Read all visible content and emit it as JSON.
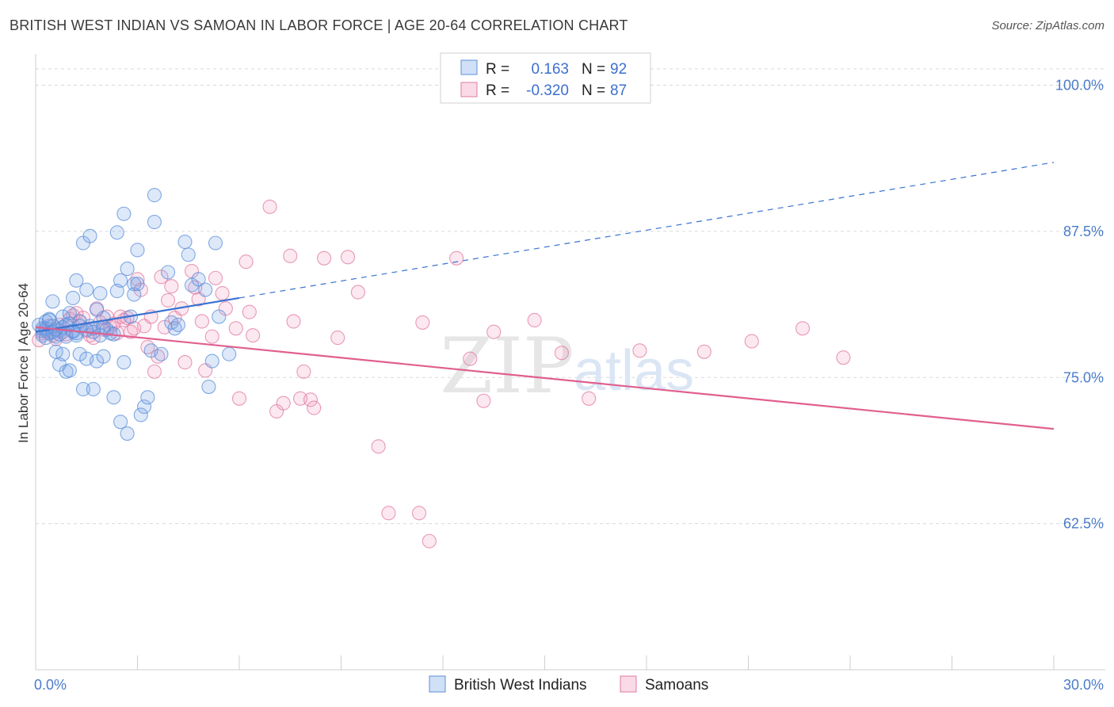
{
  "title": "BRITISH WEST INDIAN VS SAMOAN IN LABOR FORCE | AGE 20-64 CORRELATION CHART",
  "source": "Source: ZipAtlas.com",
  "colors": {
    "blue": "#5b8fd9",
    "blue_fill": "rgba(120,165,230,0.25)",
    "pink": "#e07aa0",
    "pink_fill": "rgba(240,150,185,0.22)",
    "blue_line": "#3a72d0",
    "pink_line": "#e0608f",
    "grid": "#d9d9d9"
  },
  "legend": {
    "r_label": "R =",
    "n_label": "N =",
    "rows": [
      {
        "r": "0.163",
        "n": "92",
        "series": "blue"
      },
      {
        "r": "-0.320",
        "n": "87",
        "series": "pink"
      }
    ]
  },
  "watermark": {
    "zip": "ZIP",
    "atlas": "atlas"
  },
  "chart_data": {
    "type": "scatter",
    "title": "BRITISH WEST INDIAN VS SAMOAN IN LABOR FORCE | AGE 20-64 CORRELATION CHART",
    "xlabel": "",
    "ylabel": "In Labor Force | Age 20-64",
    "xlim": [
      0,
      30
    ],
    "ylim": [
      50,
      102
    ],
    "x_tick_labels": [
      "0.0%",
      "30.0%"
    ],
    "y_ticks": [
      62.5,
      75.0,
      87.5,
      100.0
    ],
    "y_tick_labels": [
      "62.5%",
      "75.0%",
      "87.5%",
      "100.0%"
    ],
    "grid": "horizontal dashed",
    "legend_position": "top-center",
    "series": [
      {
        "name": "British West Indians",
        "color": "blue",
        "R": 0.163,
        "N": 92,
        "trend": {
          "x": [
            0.0,
            6.0
          ],
          "y": [
            78.9,
            81.8
          ],
          "dashed_extension": {
            "x": [
              6.0,
              30.0
            ],
            "y": [
              81.8,
              93.4
            ]
          }
        },
        "points": [
          [
            0.1,
            79.5
          ],
          [
            0.2,
            79.0
          ],
          [
            0.2,
            78.6
          ],
          [
            0.3,
            79.8
          ],
          [
            0.3,
            79.2
          ],
          [
            0.4,
            80.0
          ],
          [
            0.4,
            78.8
          ],
          [
            0.5,
            81.5
          ],
          [
            0.5,
            79.4
          ],
          [
            0.6,
            78.5
          ],
          [
            0.6,
            77.2
          ],
          [
            0.7,
            79.0
          ],
          [
            0.7,
            76.1
          ],
          [
            0.8,
            77.0
          ],
          [
            0.8,
            80.2
          ],
          [
            0.9,
            79.5
          ],
          [
            0.9,
            75.5
          ],
          [
            1.0,
            75.6
          ],
          [
            1.0,
            80.5
          ],
          [
            1.1,
            81.8
          ],
          [
            1.1,
            78.9
          ],
          [
            1.2,
            83.3
          ],
          [
            1.2,
            78.6
          ],
          [
            1.3,
            77.0
          ],
          [
            1.3,
            79.8
          ],
          [
            1.4,
            74.0
          ],
          [
            1.4,
            86.5
          ],
          [
            1.5,
            76.6
          ],
          [
            1.5,
            82.5
          ],
          [
            1.6,
            87.1
          ],
          [
            1.6,
            79.4
          ],
          [
            1.7,
            79.2
          ],
          [
            1.7,
            74.0
          ],
          [
            1.8,
            76.4
          ],
          [
            1.8,
            80.8
          ],
          [
            1.9,
            78.6
          ],
          [
            1.9,
            82.2
          ],
          [
            2.0,
            76.8
          ],
          [
            2.0,
            80.1
          ],
          [
            2.1,
            79.1
          ],
          [
            2.2,
            78.8
          ],
          [
            2.3,
            73.3
          ],
          [
            2.3,
            78.7
          ],
          [
            2.4,
            87.4
          ],
          [
            2.4,
            82.4
          ],
          [
            2.5,
            83.3
          ],
          [
            2.5,
            71.2
          ],
          [
            2.6,
            76.3
          ],
          [
            2.6,
            89.0
          ],
          [
            2.7,
            84.3
          ],
          [
            2.7,
            70.2
          ],
          [
            2.8,
            80.2
          ],
          [
            2.9,
            83.0
          ],
          [
            2.9,
            82.1
          ],
          [
            3.0,
            85.9
          ],
          [
            3.0,
            83.0
          ],
          [
            3.1,
            71.8
          ],
          [
            3.2,
            72.5
          ],
          [
            3.3,
            73.3
          ],
          [
            3.4,
            77.3
          ],
          [
            3.5,
            90.6
          ],
          [
            3.5,
            88.3
          ],
          [
            3.7,
            77.0
          ],
          [
            3.9,
            84.0
          ],
          [
            4.0,
            79.7
          ],
          [
            4.1,
            79.2
          ],
          [
            4.2,
            79.5
          ],
          [
            4.4,
            86.6
          ],
          [
            4.5,
            85.5
          ],
          [
            4.6,
            82.9
          ],
          [
            4.8,
            83.4
          ],
          [
            5.0,
            82.5
          ],
          [
            5.1,
            74.2
          ],
          [
            5.2,
            76.4
          ],
          [
            5.3,
            86.5
          ],
          [
            5.4,
            80.2
          ],
          [
            5.7,
            77.0
          ],
          [
            0.2,
            79.2
          ],
          [
            0.3,
            78.4
          ],
          [
            0.4,
            79.9
          ],
          [
            0.5,
            78.9
          ],
          [
            0.6,
            79.1
          ],
          [
            0.7,
            78.7
          ],
          [
            0.8,
            79.3
          ],
          [
            0.9,
            78.5
          ],
          [
            1.0,
            79.6
          ],
          [
            1.1,
            79.0
          ],
          [
            1.2,
            78.8
          ],
          [
            1.3,
            79.4
          ],
          [
            1.5,
            79.1
          ],
          [
            1.7,
            78.9
          ],
          [
            2.0,
            79.3
          ]
        ]
      },
      {
        "name": "Samoans",
        "color": "pink",
        "R": -0.32,
        "N": 87,
        "trend": {
          "x": [
            0.0,
            30.0
          ],
          "y": [
            79.3,
            70.6
          ]
        },
        "points": [
          [
            0.1,
            78.2
          ],
          [
            0.2,
            78.8
          ],
          [
            0.3,
            79.0
          ],
          [
            0.4,
            79.4
          ],
          [
            0.5,
            78.6
          ],
          [
            0.6,
            78.3
          ],
          [
            0.7,
            79.5
          ],
          [
            0.8,
            78.9
          ],
          [
            0.9,
            78.7
          ],
          [
            1.0,
            80.0
          ],
          [
            1.1,
            80.3
          ],
          [
            1.2,
            80.5
          ],
          [
            1.3,
            79.8
          ],
          [
            1.4,
            80.1
          ],
          [
            1.5,
            79.0
          ],
          [
            1.6,
            78.6
          ],
          [
            1.7,
            78.4
          ],
          [
            1.8,
            80.9
          ],
          [
            1.9,
            79.7
          ],
          [
            2.0,
            79.1
          ],
          [
            2.1,
            80.2
          ],
          [
            2.2,
            79.3
          ],
          [
            2.3,
            79.6
          ],
          [
            2.4,
            78.8
          ],
          [
            2.5,
            80.2
          ],
          [
            2.6,
            79.9
          ],
          [
            2.7,
            80.1
          ],
          [
            2.8,
            78.9
          ],
          [
            2.9,
            79.2
          ],
          [
            3.0,
            83.4
          ],
          [
            3.1,
            82.5
          ],
          [
            3.2,
            79.4
          ],
          [
            3.3,
            77.6
          ],
          [
            3.4,
            80.2
          ],
          [
            3.5,
            75.5
          ],
          [
            3.6,
            76.8
          ],
          [
            3.7,
            83.6
          ],
          [
            3.8,
            79.3
          ],
          [
            3.9,
            81.6
          ],
          [
            4.0,
            82.8
          ],
          [
            4.1,
            80.1
          ],
          [
            4.3,
            80.9
          ],
          [
            4.4,
            76.3
          ],
          [
            4.6,
            84.1
          ],
          [
            4.7,
            82.7
          ],
          [
            4.8,
            81.7
          ],
          [
            4.9,
            79.8
          ],
          [
            5.0,
            75.6
          ],
          [
            5.2,
            78.5
          ],
          [
            5.3,
            83.5
          ],
          [
            5.5,
            82.2
          ],
          [
            5.6,
            80.9
          ],
          [
            5.9,
            79.2
          ],
          [
            6.0,
            73.2
          ],
          [
            6.2,
            84.9
          ],
          [
            6.3,
            80.6
          ],
          [
            6.4,
            78.6
          ],
          [
            6.9,
            89.6
          ],
          [
            7.1,
            72.1
          ],
          [
            7.3,
            72.8
          ],
          [
            7.5,
            85.4
          ],
          [
            7.6,
            79.8
          ],
          [
            7.8,
            73.2
          ],
          [
            7.9,
            75.5
          ],
          [
            8.1,
            73.1
          ],
          [
            8.2,
            72.4
          ],
          [
            8.5,
            85.2
          ],
          [
            8.9,
            78.4
          ],
          [
            9.2,
            85.3
          ],
          [
            9.5,
            82.3
          ],
          [
            10.1,
            69.1
          ],
          [
            10.4,
            63.4
          ],
          [
            11.3,
            63.4
          ],
          [
            11.4,
            79.7
          ],
          [
            11.6,
            61.0
          ],
          [
            12.4,
            85.2
          ],
          [
            12.8,
            76.6
          ],
          [
            13.2,
            73.0
          ],
          [
            13.5,
            78.9
          ],
          [
            14.7,
            79.9
          ],
          [
            15.5,
            77.1
          ],
          [
            16.3,
            73.2
          ],
          [
            17.8,
            77.3
          ],
          [
            19.7,
            77.2
          ],
          [
            21.1,
            78.1
          ],
          [
            22.6,
            79.2
          ],
          [
            23.8,
            76.7
          ]
        ]
      }
    ]
  },
  "bottom_legend": [
    {
      "label": "British West Indians",
      "series": "blue"
    },
    {
      "label": "Samoans",
      "series": "pink"
    }
  ]
}
